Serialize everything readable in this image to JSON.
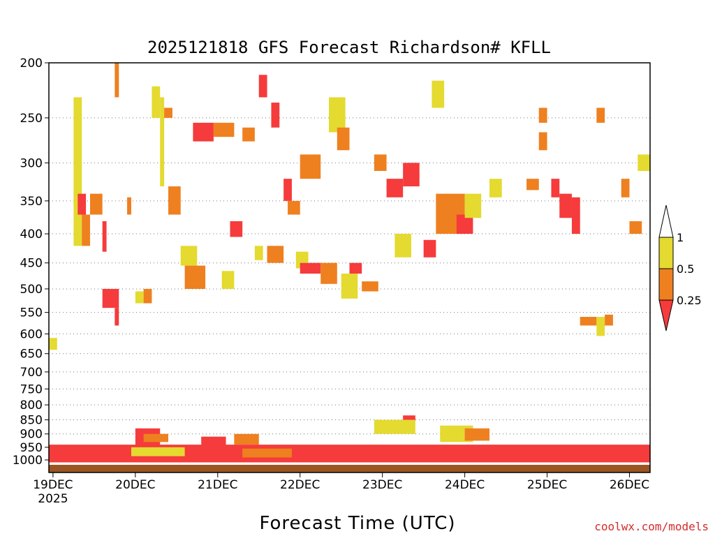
{
  "chart_data": {
    "type": "heatmap",
    "title": "2025121818 GFS Forecast Richardson# KFLL",
    "xlabel": "Forecast Time (UTC)",
    "ylabel": "",
    "x_ticks": [
      {
        "label": "19DEC",
        "sublabel": "2025",
        "t": 0
      },
      {
        "label": "20DEC",
        "t": 1
      },
      {
        "label": "21DEC",
        "t": 2
      },
      {
        "label": "22DEC",
        "t": 3
      },
      {
        "label": "23DEC",
        "t": 4
      },
      {
        "label": "24DEC",
        "t": 5
      },
      {
        "label": "25DEC",
        "t": 6
      },
      {
        "label": "26DEC",
        "t": 7
      }
    ],
    "xlim_days": [
      -0.05,
      7.25
    ],
    "y_ticks": [
      200,
      250,
      300,
      350,
      400,
      450,
      500,
      550,
      600,
      650,
      700,
      750,
      800,
      850,
      900,
      950,
      1000
    ],
    "ylim_hPa": [
      200,
      1020
    ],
    "y_scale": "log",
    "grid": "dotted horizontal at each pressure tick",
    "colorbar": {
      "levels": [
        "0.25",
        "0.5",
        "1"
      ],
      "bins": [
        {
          "range": "<0.25",
          "color": "#f53b3b"
        },
        {
          "range": "0.25-0.5",
          "color": "#ee8020"
        },
        {
          "range": "0.5-1",
          "color": "#e4da30"
        },
        {
          "range": ">1",
          "color": "#ffffff"
        }
      ]
    },
    "surface_color": "#9b5523",
    "cells": [
      {
        "t0": -0.05,
        "t1": 0.05,
        "p0": 610,
        "p1": 640,
        "c": "y"
      },
      {
        "t0": 0.25,
        "t1": 0.35,
        "p0": 230,
        "p1": 420,
        "c": "y"
      },
      {
        "t0": 0.3,
        "t1": 0.4,
        "p0": 340,
        "p1": 370,
        "c": "r"
      },
      {
        "t0": 0.35,
        "t1": 0.45,
        "p0": 370,
        "p1": 420,
        "c": "o"
      },
      {
        "t0": 0.45,
        "t1": 0.6,
        "p0": 340,
        "p1": 370,
        "c": "o"
      },
      {
        "t0": 0.6,
        "t1": 0.65,
        "p0": 380,
        "p1": 430,
        "c": "r"
      },
      {
        "t0": 0.6,
        "t1": 0.8,
        "p0": 500,
        "p1": 540,
        "c": "r"
      },
      {
        "t0": 0.75,
        "t1": 0.8,
        "p0": 200,
        "p1": 230,
        "c": "o"
      },
      {
        "t0": 0.75,
        "t1": 0.8,
        "p0": 540,
        "p1": 580,
        "c": "r"
      },
      {
        "t0": 0.9,
        "t1": 0.95,
        "p0": 345,
        "p1": 370,
        "c": "o"
      },
      {
        "t0": 1.0,
        "t1": 1.1,
        "p0": 505,
        "p1": 530,
        "c": "y"
      },
      {
        "t0": 1.1,
        "t1": 1.2,
        "p0": 500,
        "p1": 530,
        "c": "o"
      },
      {
        "t0": 1.2,
        "t1": 1.3,
        "p0": 220,
        "p1": 250,
        "c": "y"
      },
      {
        "t0": 1.3,
        "t1": 1.35,
        "p0": 230,
        "p1": 330,
        "c": "y"
      },
      {
        "t0": 1.35,
        "t1": 1.45,
        "p0": 240,
        "p1": 250,
        "c": "o"
      },
      {
        "t0": 1.4,
        "t1": 1.55,
        "p0": 330,
        "p1": 370,
        "c": "o"
      },
      {
        "t0": 1.55,
        "t1": 1.75,
        "p0": 420,
        "p1": 455,
        "c": "y"
      },
      {
        "t0": 1.6,
        "t1": 1.85,
        "p0": 455,
        "p1": 500,
        "c": "o"
      },
      {
        "t0": 1.7,
        "t1": 1.95,
        "p0": 255,
        "p1": 275,
        "c": "r"
      },
      {
        "t0": 1.95,
        "t1": 2.2,
        "p0": 255,
        "p1": 270,
        "c": "o"
      },
      {
        "t0": 2.05,
        "t1": 2.2,
        "p0": 465,
        "p1": 500,
        "c": "y"
      },
      {
        "t0": 2.15,
        "t1": 2.3,
        "p0": 380,
        "p1": 405,
        "c": "r"
      },
      {
        "t0": 2.3,
        "t1": 2.45,
        "p0": 260,
        "p1": 275,
        "c": "o"
      },
      {
        "t0": 2.45,
        "t1": 2.55,
        "p0": 420,
        "p1": 445,
        "c": "y"
      },
      {
        "t0": 2.5,
        "t1": 2.6,
        "p0": 210,
        "p1": 230,
        "c": "r"
      },
      {
        "t0": 2.6,
        "t1": 2.8,
        "p0": 420,
        "p1": 450,
        "c": "o"
      },
      {
        "t0": 2.65,
        "t1": 2.75,
        "p0": 235,
        "p1": 260,
        "c": "r"
      },
      {
        "t0": 2.8,
        "t1": 2.9,
        "p0": 320,
        "p1": 350,
        "c": "r"
      },
      {
        "t0": 2.85,
        "t1": 3.0,
        "p0": 350,
        "p1": 370,
        "c": "o"
      },
      {
        "t0": 2.95,
        "t1": 3.1,
        "p0": 430,
        "p1": 460,
        "c": "y"
      },
      {
        "t0": 3.0,
        "t1": 3.25,
        "p0": 450,
        "p1": 470,
        "c": "r"
      },
      {
        "t0": 3.0,
        "t1": 3.25,
        "p0": 290,
        "p1": 320,
        "c": "o"
      },
      {
        "t0": 3.25,
        "t1": 3.45,
        "p0": 450,
        "p1": 490,
        "c": "o"
      },
      {
        "t0": 3.35,
        "t1": 3.55,
        "p0": 230,
        "p1": 265,
        "c": "y"
      },
      {
        "t0": 3.45,
        "t1": 3.6,
        "p0": 260,
        "p1": 285,
        "c": "o"
      },
      {
        "t0": 3.5,
        "t1": 3.7,
        "p0": 470,
        "p1": 520,
        "c": "y"
      },
      {
        "t0": 3.6,
        "t1": 3.75,
        "p0": 450,
        "p1": 470,
        "c": "r"
      },
      {
        "t0": 3.75,
        "t1": 3.95,
        "p0": 485,
        "p1": 505,
        "c": "o"
      },
      {
        "t0": 3.9,
        "t1": 4.05,
        "p0": 290,
        "p1": 310,
        "c": "o"
      },
      {
        "t0": 4.05,
        "t1": 4.25,
        "p0": 320,
        "p1": 345,
        "c": "r"
      },
      {
        "t0": 4.15,
        "t1": 4.35,
        "p0": 400,
        "p1": 440,
        "c": "y"
      },
      {
        "t0": 4.25,
        "t1": 4.45,
        "p0": 300,
        "p1": 330,
        "c": "r"
      },
      {
        "t0": 4.5,
        "t1": 4.65,
        "p0": 410,
        "p1": 440,
        "c": "r"
      },
      {
        "t0": 4.6,
        "t1": 4.75,
        "p0": 215,
        "p1": 240,
        "c": "y"
      },
      {
        "t0": 4.65,
        "t1": 5.0,
        "p0": 340,
        "p1": 400,
        "c": "o"
      },
      {
        "t0": 4.9,
        "t1": 5.1,
        "p0": 370,
        "p1": 400,
        "c": "r"
      },
      {
        "t0": 5.0,
        "t1": 5.2,
        "p0": 340,
        "p1": 375,
        "c": "y"
      },
      {
        "t0": 5.3,
        "t1": 5.45,
        "p0": 320,
        "p1": 345,
        "c": "y"
      },
      {
        "t0": 5.75,
        "t1": 5.9,
        "p0": 320,
        "p1": 335,
        "c": "o"
      },
      {
        "t0": 5.9,
        "t1": 6.0,
        "p0": 240,
        "p1": 255,
        "c": "o"
      },
      {
        "t0": 5.9,
        "t1": 6.0,
        "p0": 265,
        "p1": 285,
        "c": "o"
      },
      {
        "t0": 6.05,
        "t1": 6.15,
        "p0": 320,
        "p1": 345,
        "c": "r"
      },
      {
        "t0": 6.15,
        "t1": 6.3,
        "p0": 340,
        "p1": 375,
        "c": "r"
      },
      {
        "t0": 6.3,
        "t1": 6.4,
        "p0": 345,
        "p1": 370,
        "c": "r"
      },
      {
        "t0": 6.3,
        "t1": 6.4,
        "p0": 370,
        "p1": 400,
        "c": "r"
      },
      {
        "t0": 6.4,
        "t1": 6.6,
        "p0": 560,
        "p1": 580,
        "c": "o"
      },
      {
        "t0": 6.6,
        "t1": 6.7,
        "p0": 240,
        "p1": 255,
        "c": "o"
      },
      {
        "t0": 6.6,
        "t1": 6.7,
        "p0": 560,
        "p1": 605,
        "c": "y"
      },
      {
        "t0": 6.7,
        "t1": 6.8,
        "p0": 555,
        "p1": 580,
        "c": "o"
      },
      {
        "t0": 6.9,
        "t1": 7.0,
        "p0": 320,
        "p1": 345,
        "c": "o"
      },
      {
        "t0": 7.0,
        "t1": 7.15,
        "p0": 380,
        "p1": 400,
        "c": "o"
      },
      {
        "t0": 7.1,
        "t1": 7.25,
        "p0": 290,
        "p1": 310,
        "c": "y"
      },
      {
        "t0": 1.0,
        "t1": 1.3,
        "p0": 880,
        "p1": 950,
        "c": "r"
      },
      {
        "t0": 1.1,
        "t1": 1.4,
        "p0": 900,
        "p1": 930,
        "c": "o"
      },
      {
        "t0": 1.8,
        "t1": 2.1,
        "p0": 910,
        "p1": 950,
        "c": "r"
      },
      {
        "t0": 2.2,
        "t1": 2.5,
        "p0": 900,
        "p1": 940,
        "c": "o"
      },
      {
        "t0": 3.9,
        "t1": 4.4,
        "p0": 850,
        "p1": 900,
        "c": "y"
      },
      {
        "t0": 4.25,
        "t1": 4.4,
        "p0": 835,
        "p1": 850,
        "c": "r"
      },
      {
        "t0": 4.7,
        "t1": 5.1,
        "p0": 870,
        "p1": 930,
        "c": "y"
      },
      {
        "t0": 5.0,
        "t1": 5.3,
        "p0": 880,
        "p1": 925,
        "c": "o"
      },
      {
        "t0": -0.05,
        "t1": 7.25,
        "p0": 940,
        "p1": 1010,
        "c": "r"
      },
      {
        "t0": 0.95,
        "t1": 1.6,
        "p0": 950,
        "p1": 985,
        "c": "y"
      },
      {
        "t0": 2.3,
        "t1": 2.9,
        "p0": 955,
        "p1": 990,
        "c": "o"
      }
    ]
  },
  "credit": "coolwx.com/models"
}
